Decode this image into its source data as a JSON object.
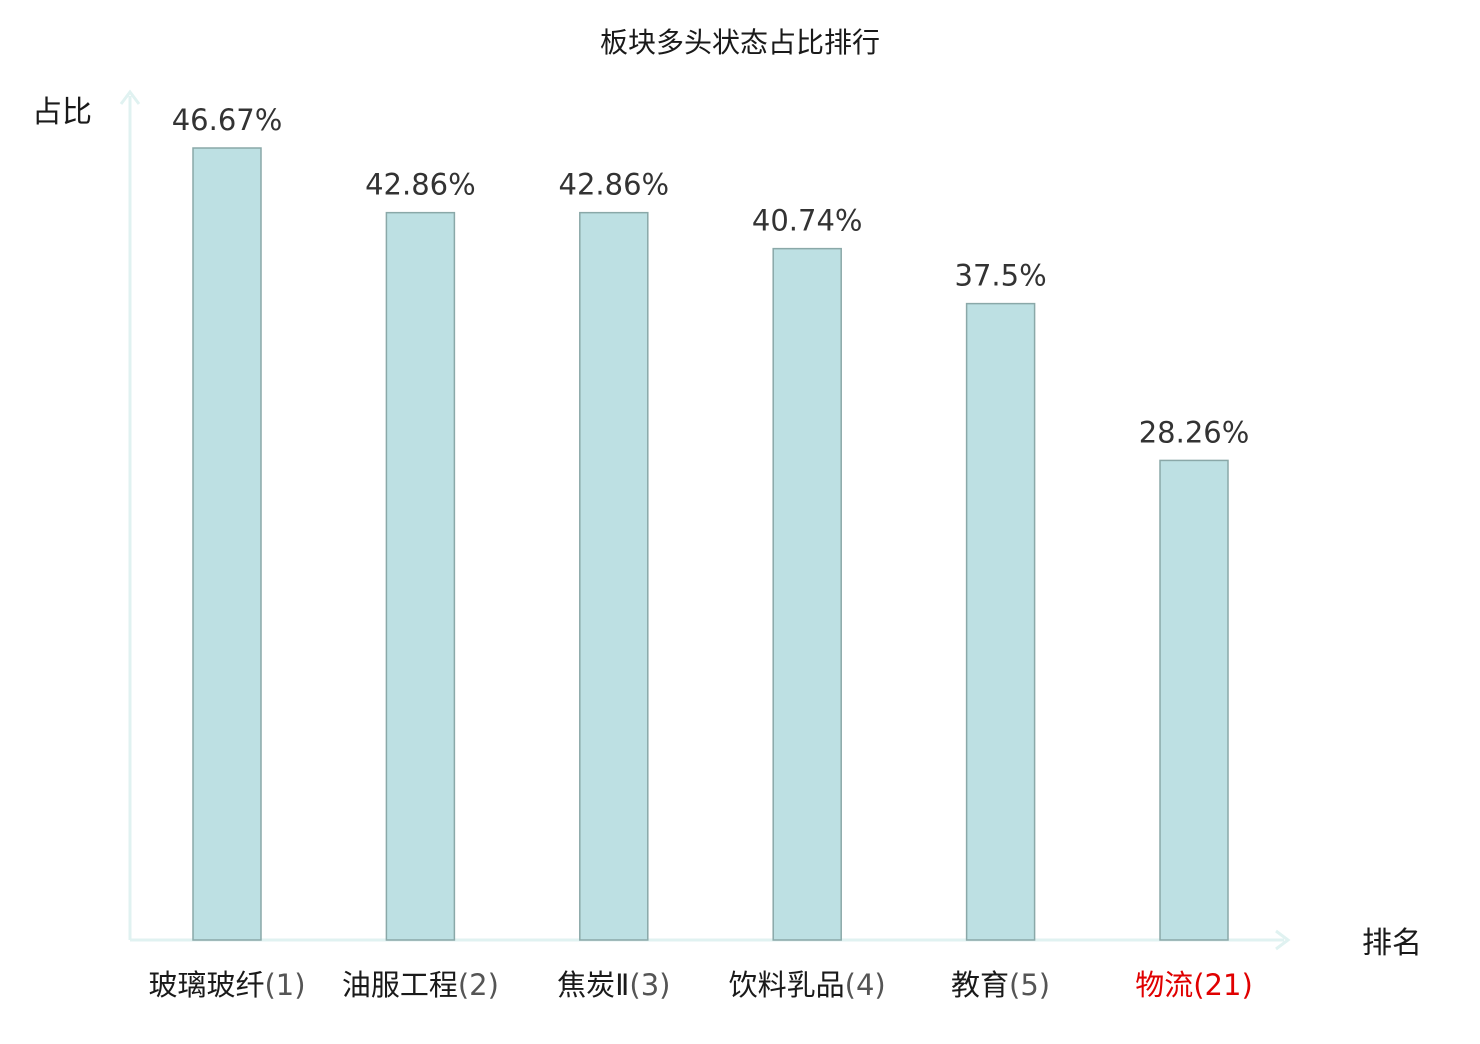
{
  "chart_data": {
    "type": "bar",
    "title": "板块多头状态占比排行",
    "ylabel": "占比",
    "xlabel": "排名",
    "categories": [
      "玻璃玻纤",
      "油服工程",
      "焦炭Ⅱ",
      "饮料乳品",
      "教育",
      "物流"
    ],
    "ranks": [
      "(1)",
      "(2)",
      "(3)",
      "(4)",
      "(5)",
      "(21)"
    ],
    "values": [
      46.67,
      42.86,
      42.86,
      40.74,
      37.5,
      28.26
    ],
    "value_labels": [
      "46.67%",
      "42.86%",
      "42.86%",
      "40.74%",
      "37.5%",
      "28.26%"
    ],
    "highlight_index": 5,
    "ylim": [
      0,
      50
    ],
    "grid": false,
    "legend": "none",
    "colors": {
      "bar_fill": "#bde0e3",
      "bar_stroke": "#8aa8a8",
      "axis": "#e0f2f1",
      "text": "#1a1a1a",
      "value_label": "#333333",
      "highlight": "#e00000"
    }
  }
}
